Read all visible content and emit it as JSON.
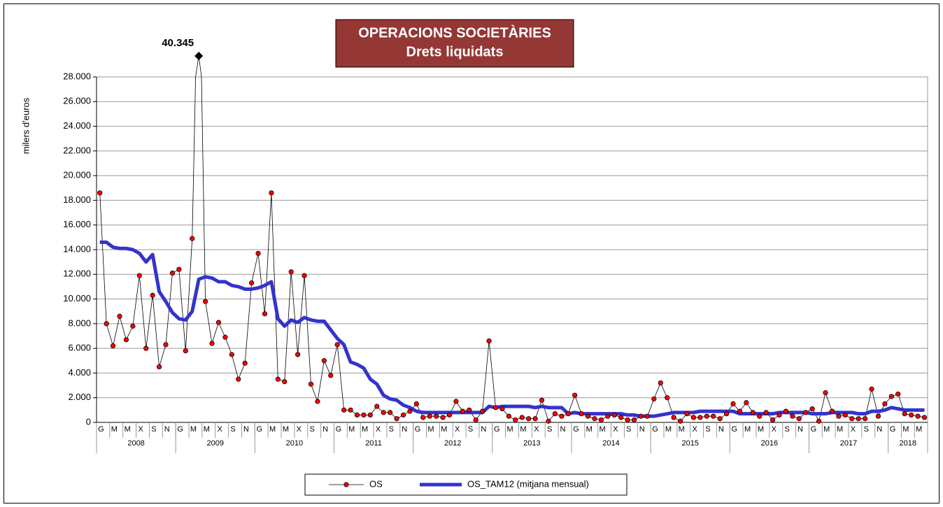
{
  "chart_data": {
    "type": "line",
    "title": "OPERACIONS SOCIETÀRIES",
    "subtitle": "Drets liquidats",
    "y_label": "milers d'euros",
    "categories": [
      "G",
      null,
      "M",
      null,
      "M",
      null,
      "X",
      null,
      "S",
      null,
      "N",
      null,
      "G",
      null,
      "M",
      null,
      "M",
      null,
      "X",
      null,
      "S",
      null,
      "N",
      null,
      "G",
      null,
      "M",
      null,
      "M",
      null,
      "X",
      null,
      "S",
      null,
      "N",
      null,
      "G",
      null,
      "M",
      null,
      "M",
      null,
      "X",
      null,
      "S",
      null,
      "N",
      null,
      "G",
      null,
      "M",
      null,
      "M",
      null,
      "X",
      null,
      "S",
      null,
      "N",
      null,
      "G",
      null,
      "M",
      null,
      "M",
      null,
      "X",
      null,
      "S",
      null,
      "N",
      null,
      "G",
      null,
      "M",
      null,
      "M",
      null,
      "X",
      null,
      "S",
      null,
      "N",
      null,
      "G",
      null,
      "M",
      null,
      "M",
      null,
      "X",
      null,
      "S",
      null,
      "N",
      null,
      "G",
      null,
      "M",
      null,
      "M",
      null,
      "X",
      null,
      "S",
      null,
      "N",
      null,
      "G",
      null,
      "M",
      null,
      "M",
      null,
      "X",
      null,
      "S",
      null,
      "N",
      null,
      "G",
      null,
      "M",
      null,
      "M",
      null
    ],
    "years": [
      "2008",
      "2009",
      "2010",
      "2011",
      "2012",
      "2013",
      "2014",
      "2015",
      "2016",
      "2017",
      "2018"
    ],
    "series": [
      {
        "name": "OS",
        "color": "#ff0000",
        "line_color": "#000000",
        "values": [
          18600,
          8000,
          6200,
          8600,
          6700,
          7800,
          11900,
          6000,
          10300,
          4500,
          6300,
          12100,
          12400,
          5800,
          14900,
          40345,
          9800,
          6400,
          8100,
          6900,
          5500,
          3500,
          4800,
          11300,
          13700,
          8800,
          18600,
          3500,
          3300,
          12200,
          5500,
          11900,
          3100,
          1700,
          5000,
          3800,
          6300,
          1000,
          1000,
          600,
          600,
          600,
          1300,
          800,
          800,
          300,
          600,
          900,
          1500,
          400,
          500,
          500,
          400,
          600,
          1700,
          900,
          1000,
          200,
          900,
          6600,
          1200,
          1100,
          500,
          200,
          400,
          300,
          300,
          1800,
          100,
          700,
          500,
          700,
          2200,
          700,
          500,
          300,
          200,
          500,
          600,
          400,
          200,
          200,
          500,
          500,
          1900,
          3200,
          2000,
          400,
          100,
          700,
          400,
          400,
          500,
          500,
          300,
          700,
          1500,
          900,
          1600,
          800,
          500,
          800,
          200,
          600,
          900,
          500,
          300,
          800,
          1100,
          100,
          2400,
          900,
          500,
          600,
          300,
          300,
          300,
          2700,
          500,
          1500,
          2100,
          2300,
          700,
          600,
          500,
          400
        ],
        "value_labels": [
          null,
          null,
          null,
          null,
          null,
          null,
          null,
          null,
          null,
          null,
          null,
          null,
          null,
          null,
          null,
          "40.345",
          null,
          null,
          null,
          null,
          null,
          null,
          null,
          null,
          null,
          null,
          null,
          null,
          null,
          null,
          null,
          null,
          null,
          null,
          null,
          null,
          null,
          null,
          null,
          null,
          null,
          null,
          null,
          null,
          null,
          null,
          null,
          null,
          null,
          null,
          null,
          null,
          null,
          null,
          null,
          null,
          null,
          null,
          null,
          null,
          null,
          null,
          null,
          null,
          null,
          null,
          null,
          null,
          null,
          null,
          null,
          null,
          null,
          null,
          null,
          null,
          null,
          null,
          null,
          null,
          null,
          null,
          null,
          null,
          null,
          null,
          null,
          null,
          null,
          null,
          null,
          null,
          null,
          null,
          null,
          null,
          null,
          null,
          null,
          null,
          null,
          null,
          null,
          null,
          null,
          null,
          null,
          null,
          null,
          null,
          null,
          null,
          null,
          null,
          null,
          null,
          null,
          null,
          null,
          null,
          null,
          null,
          null,
          null,
          null,
          null
        ]
      },
      {
        "name": "OS_TAM12 (mitjana mensual)",
        "color": "#3333cc",
        "values": [
          14600,
          14600,
          14200,
          14100,
          14100,
          14000,
          13700,
          13000,
          13600,
          10600,
          9800,
          8900,
          8400,
          8300,
          9000,
          11600,
          11800,
          11700,
          11400,
          11400,
          11100,
          11000,
          10800,
          10800,
          10900,
          11100,
          11400,
          8400,
          7800,
          8300,
          8100,
          8500,
          8300,
          8200,
          8200,
          7500,
          6800,
          6300,
          4900,
          4700,
          4400,
          3500,
          3100,
          2200,
          1900,
          1800,
          1400,
          1200,
          900,
          800,
          800,
          800,
          800,
          800,
          800,
          800,
          800,
          800,
          800,
          1300,
          1200,
          1300,
          1300,
          1300,
          1300,
          1300,
          1200,
          1300,
          1200,
          1200,
          1200,
          700,
          800,
          700,
          700,
          700,
          700,
          700,
          700,
          700,
          600,
          600,
          500,
          500,
          500,
          600,
          700,
          800,
          800,
          800,
          800,
          900,
          900,
          900,
          900,
          900,
          900,
          700,
          700,
          700,
          700,
          700,
          700,
          800,
          800,
          800,
          800,
          800,
          700,
          700,
          700,
          800,
          800,
          800,
          800,
          700,
          700,
          900,
          900,
          1000,
          1200,
          1100,
          1000,
          1000,
          1000,
          1000
        ]
      }
    ],
    "ylim": [
      0,
      28000
    ],
    "yticks": [
      {
        "value": 0,
        "label": "0"
      },
      {
        "value": 2000,
        "label": "2.000"
      },
      {
        "value": 4000,
        "label": "4.000"
      },
      {
        "value": 6000,
        "label": "6.000"
      },
      {
        "value": 8000,
        "label": "8.000"
      },
      {
        "value": 10000,
        "label": "10.000"
      },
      {
        "value": 12000,
        "label": "12.000"
      },
      {
        "value": 14000,
        "label": "14.000"
      },
      {
        "value": 16000,
        "label": "16.000"
      },
      {
        "value": 18000,
        "label": "18.000"
      },
      {
        "value": 20000,
        "label": "20.000"
      },
      {
        "value": 22000,
        "label": "22.000"
      },
      {
        "value": 24000,
        "label": "24.000"
      },
      {
        "value": 26000,
        "label": "26.000"
      },
      {
        "value": 28000,
        "label": "28.000"
      }
    ],
    "grid": true,
    "legend": "bottom"
  }
}
